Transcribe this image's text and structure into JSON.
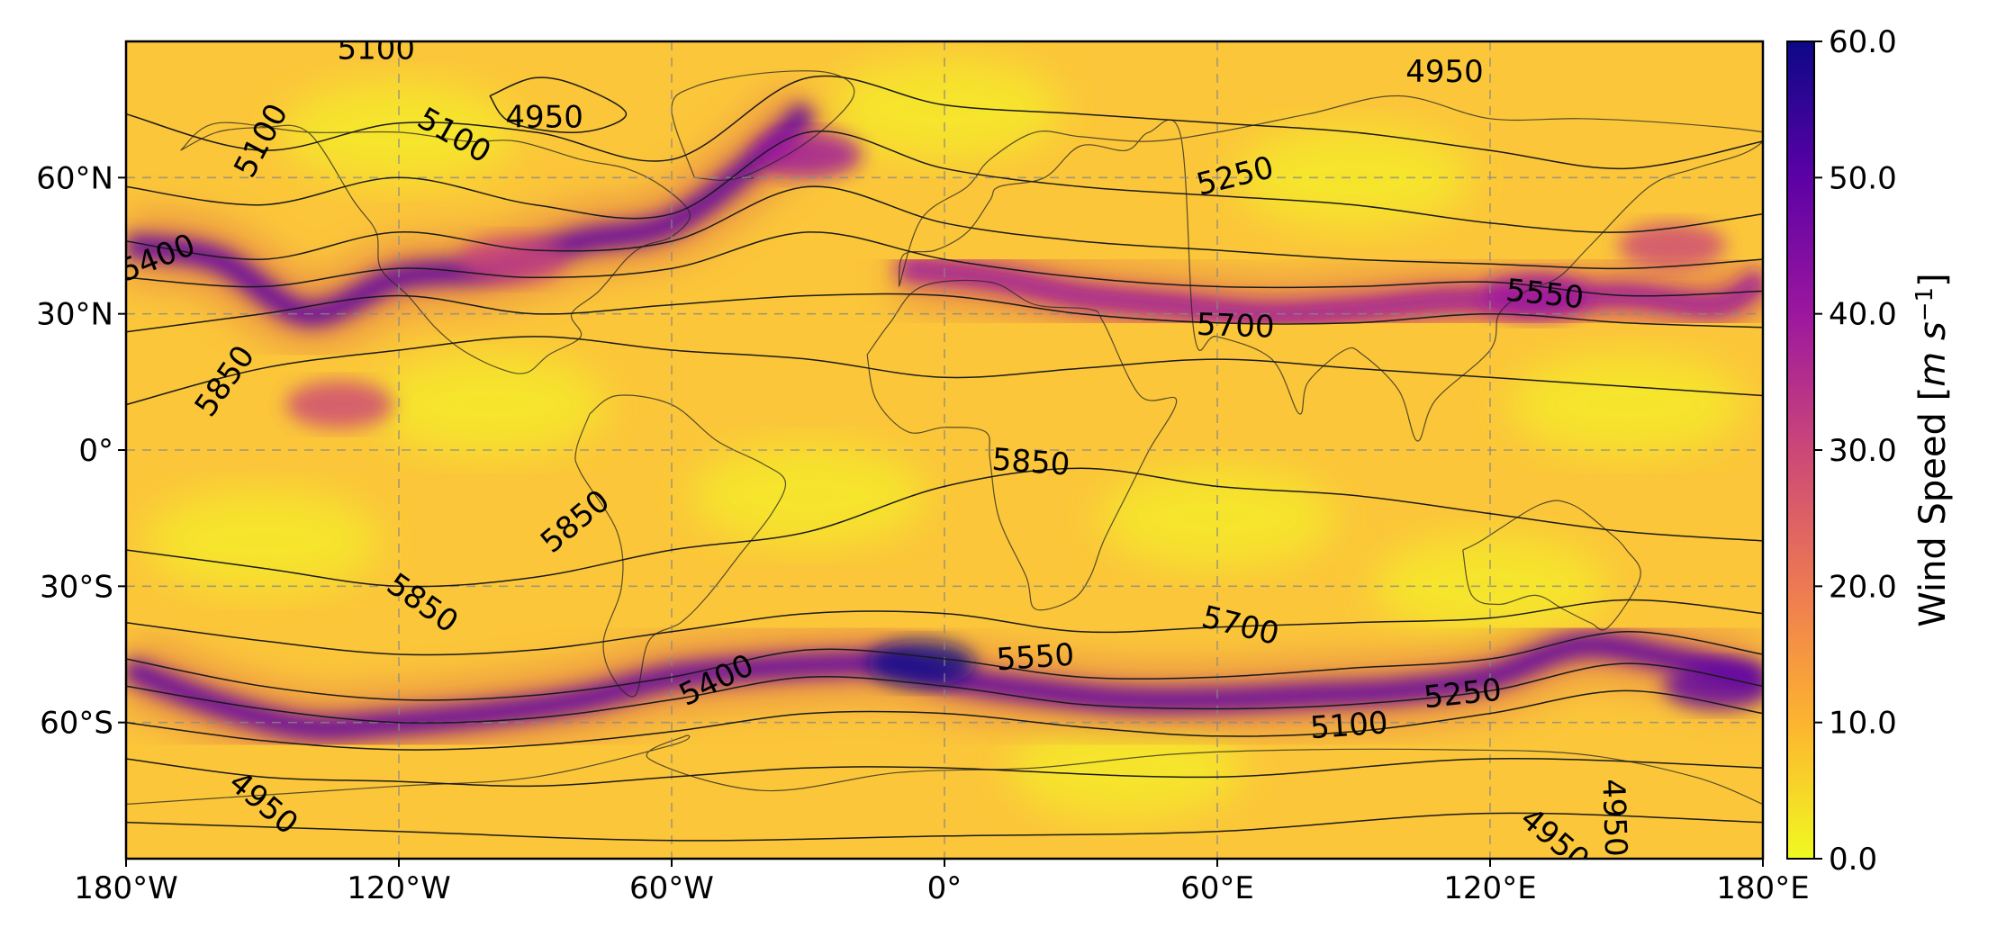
{
  "chart_data": {
    "type": "heatmap",
    "title": "",
    "xlabel": "",
    "ylabel": "",
    "x_range": [
      -180,
      180
    ],
    "y_range": [
      -90,
      90
    ],
    "xticks": [
      {
        "value": -180,
        "label": "180°W"
      },
      {
        "value": -120,
        "label": "120°W"
      },
      {
        "value": -60,
        "label": "60°W"
      },
      {
        "value": 0,
        "label": "0°"
      },
      {
        "value": 60,
        "label": "60°E"
      },
      {
        "value": 120,
        "label": "120°E"
      },
      {
        "value": 180,
        "label": "180°E"
      }
    ],
    "yticks": [
      {
        "value": 60,
        "label": "60°N"
      },
      {
        "value": 30,
        "label": "30°N"
      },
      {
        "value": 0,
        "label": "0°"
      },
      {
        "value": -30,
        "label": "30°S"
      },
      {
        "value": -60,
        "label": "60°S"
      }
    ],
    "grid": true,
    "colormap": "plasma_r",
    "colorbar": {
      "label_prefix": "Wind Speed [",
      "label_unit": "m s",
      "label_exp": "−1",
      "label_suffix": "]",
      "range": [
        0,
        60
      ],
      "ticks": [
        "0.0",
        "10.0",
        "20.0",
        "30.0",
        "40.0",
        "50.0",
        "60.0"
      ],
      "colors": [
        "#f0f921",
        "#fdb42f",
        "#ed7953",
        "#cc4778",
        "#9c179e",
        "#5c01a6",
        "#0d0887"
      ]
    },
    "jets": [
      {
        "lons": [
          -180,
          -160,
          -140,
          -120,
          -100,
          -80,
          -60,
          -40,
          -30
        ],
        "lats": [
          45,
          42,
          30,
          38,
          40,
          46,
          50,
          65,
          75
        ],
        "speed": 50
      },
      {
        "lons": [
          -10,
          10,
          30,
          50,
          70,
          90,
          110,
          130,
          150,
          170,
          180
        ],
        "lats": [
          40,
          38,
          34,
          32,
          30,
          31,
          33,
          33,
          34,
          32,
          38
        ],
        "speed": 44
      },
      {
        "lons": [
          -180,
          -160,
          -140,
          -120,
          -100,
          -80,
          -60,
          -40,
          -20,
          -10,
          0,
          20,
          40,
          60,
          80,
          100,
          120,
          140,
          160,
          180
        ],
        "lats": [
          -48,
          -56,
          -61,
          -60,
          -58,
          -55,
          -50,
          -48,
          -47,
          -47,
          -50,
          -53,
          -55,
          -55,
          -54,
          -53,
          -50,
          -43,
          -46,
          -50
        ],
        "speed": 52
      }
    ],
    "wind_blobs": [
      {
        "lon": -5,
        "lat": -47,
        "speed": 58
      },
      {
        "lon": -30,
        "lat": 65,
        "speed": 40
      },
      {
        "lon": 130,
        "lat": 34,
        "speed": 42
      },
      {
        "lon": 170,
        "lat": -52,
        "speed": 45
      },
      {
        "lon": -133,
        "lat": 10,
        "speed": 28
      },
      {
        "lon": -95,
        "lat": 42,
        "speed": 30
      },
      {
        "lon": 160,
        "lat": 45,
        "speed": 30
      }
    ],
    "contours": [
      {
        "level": "4950",
        "lons": [
          -180,
          -120,
          -60,
          0,
          60,
          120,
          180
        ],
        "lats": [
          -82,
          -84,
          -86,
          -85,
          -84,
          -80,
          -82
        ]
      },
      {
        "level": "5100",
        "lons": [
          -180,
          -150,
          -120,
          -90,
          -60,
          -30,
          0,
          60,
          120,
          180
        ],
        "lats": [
          -68,
          -72,
          -73,
          -74,
          -72,
          -70,
          -70,
          -72,
          -68,
          -70
        ]
      },
      {
        "level": "5250",
        "lons": [
          -180,
          -150,
          -120,
          -90,
          -60,
          -30,
          0,
          30,
          60,
          90,
          120,
          150,
          180
        ],
        "lats": [
          -60,
          -64,
          -66,
          -65,
          -62,
          -58,
          -58,
          -61,
          -63,
          -62,
          -58,
          -53,
          -58
        ]
      },
      {
        "level": "5400",
        "lons": [
          -180,
          -150,
          -120,
          -90,
          -60,
          -30,
          0,
          30,
          60,
          90,
          120,
          150,
          180
        ],
        "lats": [
          -52,
          -57,
          -60,
          -59,
          -55,
          -50,
          -52,
          -56,
          -57,
          -56,
          -53,
          -47,
          -52
        ]
      },
      {
        "level": "5550",
        "lons": [
          -180,
          -150,
          -120,
          -90,
          -60,
          -30,
          0,
          30,
          60,
          90,
          120,
          150,
          180
        ],
        "lats": [
          -46,
          -52,
          -55,
          -54,
          -50,
          -44,
          -46,
          -50,
          -50,
          -48,
          -46,
          -40,
          -45
        ]
      },
      {
        "level": "5700",
        "lons": [
          -180,
          -150,
          -120,
          -90,
          -60,
          -30,
          0,
          30,
          60,
          90,
          120,
          150,
          180
        ],
        "lats": [
          -38,
          -42,
          -45,
          -44,
          -40,
          -36,
          -36,
          -40,
          -39,
          -38,
          -37,
          -33,
          -36
        ]
      },
      {
        "level": "5850",
        "lons": [
          -180,
          -150,
          -120,
          -90,
          -60,
          -30,
          0,
          30,
          60,
          90,
          120,
          150,
          180
        ],
        "lats": [
          -22,
          -26,
          -30,
          -28,
          -22,
          -18,
          -8,
          -4,
          -8,
          -10,
          -14,
          -18,
          -20
        ]
      },
      {
        "level": "5850",
        "lons": [
          -180,
          -150,
          -120,
          -90,
          -60,
          -30,
          0,
          30,
          60,
          90,
          120,
          150,
          180
        ],
        "lats": [
          10,
          18,
          22,
          25,
          22,
          20,
          16,
          18,
          20,
          18,
          16,
          14,
          12
        ]
      },
      {
        "level": "5700",
        "lons": [
          -180,
          -150,
          -120,
          -90,
          -60,
          -30,
          0,
          30,
          60,
          90,
          120,
          150,
          180
        ],
        "lats": [
          26,
          30,
          34,
          30,
          32,
          34,
          34,
          30,
          28,
          28,
          30,
          28,
          27
        ]
      },
      {
        "level": "5550",
        "lons": [
          -180,
          -150,
          -120,
          -90,
          -60,
          -30,
          0,
          30,
          60,
          90,
          120,
          150,
          180
        ],
        "lats": [
          38,
          36,
          40,
          38,
          40,
          48,
          42,
          38,
          36,
          36,
          37,
          34,
          35
        ]
      },
      {
        "level": "5400",
        "lons": [
          -180,
          -150,
          -120,
          -90,
          -60,
          -30,
          0,
          30,
          60,
          90,
          120,
          150,
          180
        ],
        "lats": [
          46,
          42,
          48,
          44,
          46,
          58,
          50,
          46,
          44,
          42,
          41,
          40,
          42
        ]
      },
      {
        "level": "5250",
        "lons": [
          -180,
          -150,
          -120,
          -90,
          -60,
          -30,
          0,
          30,
          60,
          90,
          120,
          150,
          180
        ],
        "lats": [
          58,
          54,
          60,
          54,
          52,
          70,
          62,
          58,
          56,
          54,
          50,
          48,
          52
        ]
      },
      {
        "level": "5100",
        "lons": [
          -180,
          -150,
          -120,
          -90,
          -60,
          -30,
          0,
          30,
          60,
          90,
          120,
          150,
          180
        ],
        "lats": [
          74,
          66,
          72,
          70,
          64,
          82,
          76,
          74,
          72,
          70,
          66,
          62,
          68
        ]
      },
      {
        "level": "4950",
        "lons": [
          -100,
          -90,
          -80,
          -70,
          -80,
          -95,
          -100
        ],
        "lats": [
          78,
          82,
          80,
          74,
          70,
          72,
          78
        ]
      }
    ],
    "contour_labels": [
      {
        "text": "5100",
        "lon": -125,
        "lat": 88,
        "angle": 0
      },
      {
        "text": "5100",
        "lon": -150,
        "lat": 68,
        "angle": -62
      },
      {
        "text": "5100",
        "lon": -108,
        "lat": 69,
        "angle": 30
      },
      {
        "text": "4950",
        "lon": -88,
        "lat": 73,
        "angle": 0
      },
      {
        "text": "4950",
        "lon": 110,
        "lat": 83,
        "angle": 0
      },
      {
        "text": "5250",
        "lon": 64,
        "lat": 60,
        "angle": -14
      },
      {
        "text": "5400",
        "lon": -173,
        "lat": 42,
        "angle": -22
      },
      {
        "text": "5550",
        "lon": 132,
        "lat": 34,
        "angle": 6
      },
      {
        "text": "5700",
        "lon": 64,
        "lat": 27,
        "angle": 2
      },
      {
        "text": "5850",
        "lon": -158,
        "lat": 15,
        "angle": -55
      },
      {
        "text": "5850",
        "lon": 19,
        "lat": -3,
        "angle": 4
      },
      {
        "text": "5850",
        "lon": -81,
        "lat": -16,
        "angle": -40
      },
      {
        "text": "5850",
        "lon": -115,
        "lat": -34,
        "angle": 35
      },
      {
        "text": "5700",
        "lon": 65,
        "lat": -39,
        "angle": 14
      },
      {
        "text": "5550",
        "lon": 20,
        "lat": -46,
        "angle": -4
      },
      {
        "text": "5400",
        "lon": -50,
        "lat": -51,
        "angle": -26
      },
      {
        "text": "5250",
        "lon": 114,
        "lat": -54,
        "angle": -6
      },
      {
        "text": "5100",
        "lon": 89,
        "lat": -61,
        "angle": -4
      },
      {
        "text": "4950",
        "lon": -150,
        "lat": -78,
        "angle": 40
      },
      {
        "text": "4950",
        "lon": 147,
        "lat": -81,
        "angle": 88
      },
      {
        "text": "4950",
        "lon": 134,
        "lat": -86,
        "angle": 40
      }
    ],
    "coastlines": [
      {
        "name": "north-america",
        "lons": [
          -168,
          -160,
          -150,
          -140,
          -130,
          -125,
          -124,
          -118,
          -112,
          -106,
          -98,
          -92,
          -87,
          -80,
          -82,
          -76,
          -70,
          -66,
          -60,
          -56,
          -62,
          -70,
          -80,
          -94,
          -105,
          -120,
          -140,
          -160,
          -168
        ],
        "lats": [
          66,
          70,
          71,
          70,
          55,
          48,
          40,
          34,
          27,
          22,
          18,
          17,
          21,
          25,
          30,
          35,
          42,
          45,
          47,
          52,
          58,
          62,
          64,
          68,
          68,
          70,
          70,
          72,
          66
        ]
      },
      {
        "name": "south-america",
        "lons": [
          -78,
          -72,
          -60,
          -50,
          -40,
          -35,
          -38,
          -45,
          -52,
          -58,
          -65,
          -68,
          -73,
          -75,
          -71,
          -72,
          -80,
          -81,
          -78
        ],
        "lats": [
          8,
          12,
          10,
          2,
          -3,
          -7,
          -14,
          -23,
          -32,
          -38,
          -42,
          -54,
          -50,
          -42,
          -30,
          -18,
          -5,
          0,
          8
        ]
      },
      {
        "name": "africa",
        "lons": [
          -17,
          -12,
          -5,
          10,
          20,
          32,
          35,
          43,
          51,
          45,
          40,
          35,
          32,
          28,
          20,
          18,
          12,
          10,
          9,
          0,
          -8,
          -15,
          -17
        ],
        "lats": [
          21,
          28,
          36,
          37,
          32,
          31,
          28,
          12,
          11,
          0,
          -10,
          -20,
          -28,
          -33,
          -35,
          -28,
          -15,
          -2,
          4,
          5,
          4,
          11,
          21
        ]
      },
      {
        "name": "eurasia",
        "lons": [
          -10,
          -9,
          -2,
          5,
          10,
          12,
          22,
          30,
          40,
          45,
          52,
          55,
          60,
          72,
          78,
          80,
          88,
          92,
          100,
          104,
          108,
          120,
          122,
          128,
          135,
          142,
          155,
          165,
          175,
          180,
          180,
          160,
          140,
          120,
          100,
          80,
          60,
          45,
          30,
          20,
          10,
          5,
          -5,
          -10
        ],
        "lats": [
          36,
          43,
          44,
          48,
          55,
          58,
          60,
          67,
          66,
          70,
          69,
          25,
          25,
          20,
          8,
          15,
          22,
          21,
          13,
          2,
          11,
          22,
          30,
          35,
          38,
          45,
          58,
          62,
          65,
          68,
          70,
          72,
          73,
          73,
          78,
          74,
          70,
          68,
          69,
          70,
          64,
          58,
          51,
          36
        ]
      },
      {
        "name": "australia",
        "lons": [
          114,
          116,
          122,
          130,
          136,
          142,
          146,
          153,
          150,
          146,
          138,
          131,
          118,
          114
        ],
        "lats": [
          -22,
          -32,
          -34,
          -32,
          -35,
          -38,
          -39,
          -28,
          -22,
          -18,
          -12,
          -12,
          -20,
          -22
        ]
      },
      {
        "name": "greenland",
        "lons": [
          -55,
          -45,
          -30,
          -20,
          -25,
          -40,
          -55,
          -60,
          -55
        ],
        "lats": [
          60,
          60,
          68,
          78,
          83,
          83,
          80,
          75,
          60
        ]
      },
      {
        "name": "antarctica",
        "lons": [
          -180,
          -150,
          -120,
          -90,
          -60,
          -57,
          -65,
          -40,
          -10,
          20,
          50,
          80,
          110,
          140,
          165,
          180
        ],
        "lats": [
          -78,
          -76,
          -74,
          -72,
          -65,
          -63,
          -68,
          -75,
          -71,
          -70,
          -67,
          -66,
          -66,
          -67,
          -72,
          -78
        ]
      },
      {
        "name": "greenland-south-tip",
        "lons": [
          -44,
          -43,
          -42
        ],
        "lats": [
          60,
          59.8,
          60
        ]
      }
    ]
  }
}
